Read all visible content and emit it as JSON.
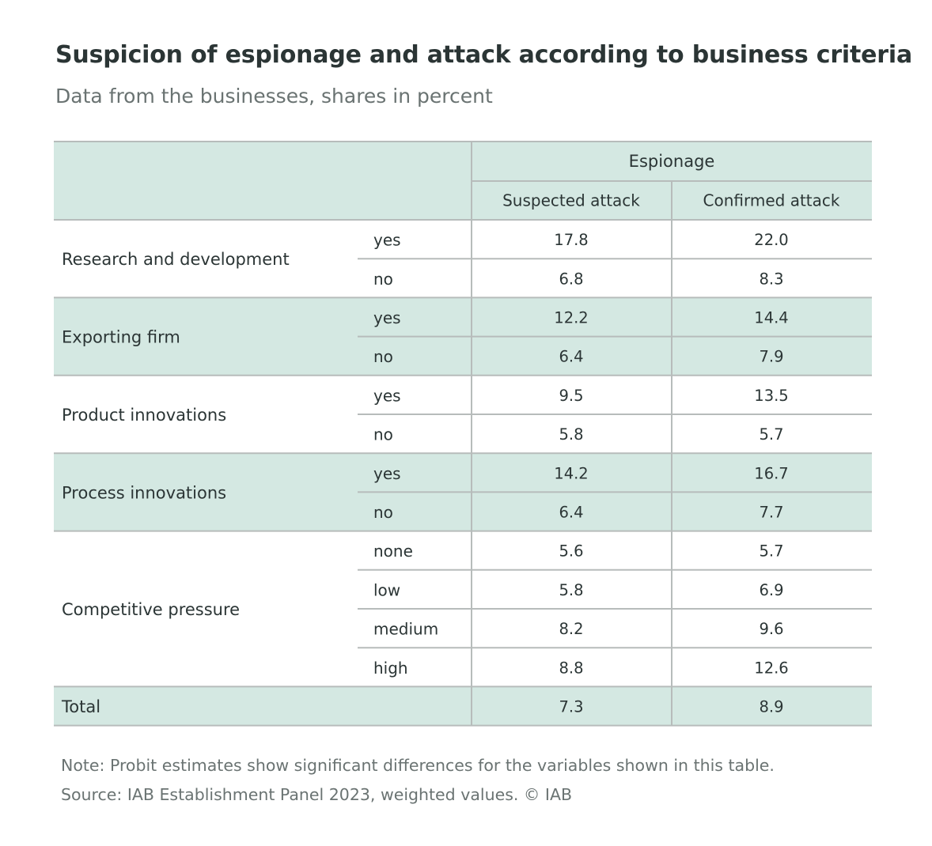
{
  "title": "Suspicion of espionage and attack according to business criteria",
  "subtitle": "Data from the businesses, shares in percent",
  "note": "Note: Probit estimates show significant differences for the variables shown in this table.",
  "source": "Source: IAB Establishment Panel 2023, weighted values. © IAB",
  "colors": {
    "shade": "#d4e8e2",
    "rule": "#b7bcbb",
    "text": "#2b3535",
    "muted": "#6a7372"
  },
  "chart_data": {
    "type": "table",
    "group_header": "Espionage",
    "columns": [
      "Suspected attack",
      "Confirmed attack"
    ],
    "groups": [
      {
        "label": "Research and development",
        "rows": [
          {
            "label": "yes",
            "values": [
              "17.8",
              "22.0"
            ]
          },
          {
            "label": "no",
            "values": [
              "6.8",
              "8.3"
            ]
          }
        ]
      },
      {
        "label": "Exporting firm",
        "rows": [
          {
            "label": "yes",
            "values": [
              "12.2",
              "14.4"
            ]
          },
          {
            "label": "no",
            "values": [
              "6.4",
              "7.9"
            ]
          }
        ]
      },
      {
        "label": "Product innovations",
        "rows": [
          {
            "label": "yes",
            "values": [
              "9.5",
              "13.5"
            ]
          },
          {
            "label": "no",
            "values": [
              "5.8",
              "5.7"
            ]
          }
        ]
      },
      {
        "label": "Process innovations",
        "rows": [
          {
            "label": "yes",
            "values": [
              "14.2",
              "16.7"
            ]
          },
          {
            "label": "no",
            "values": [
              "6.4",
              "7.7"
            ]
          }
        ]
      },
      {
        "label": "Competitive pressure",
        "rows": [
          {
            "label": "none",
            "values": [
              "5.6",
              "5.7"
            ]
          },
          {
            "label": "low",
            "values": [
              "5.8",
              "6.9"
            ]
          },
          {
            "label": "medium",
            "values": [
              "8.2",
              "9.6"
            ]
          },
          {
            "label": "high",
            "values": [
              "8.8",
              "12.6"
            ]
          }
        ]
      }
    ],
    "total": {
      "label": "Total",
      "values": [
        "7.3",
        "8.9"
      ]
    }
  }
}
